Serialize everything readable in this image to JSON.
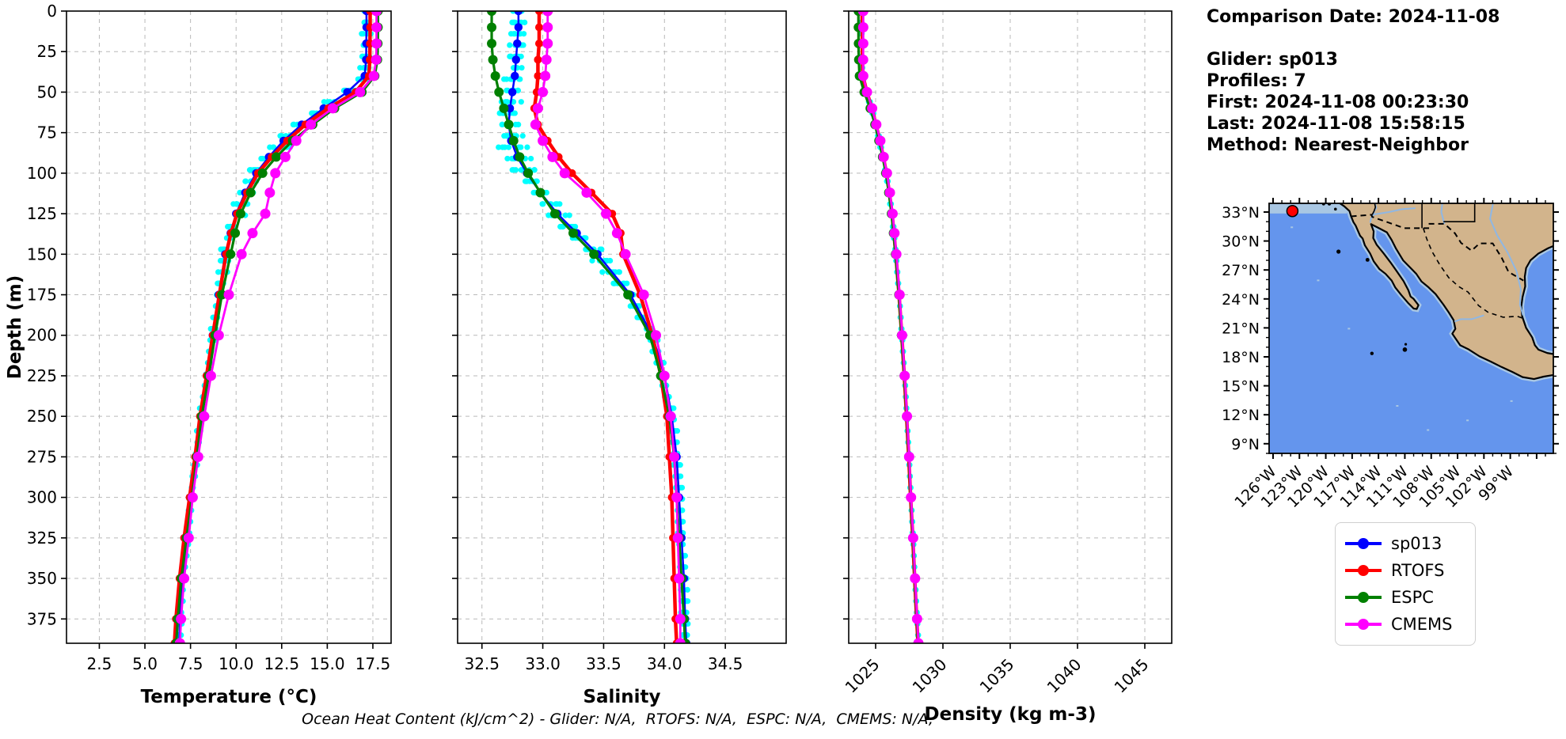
{
  "info_panel": {
    "comparison_date": "Comparison Date: 2024-11-08",
    "lines": [
      "Glider: sp013",
      "Profiles: 7",
      "First: 2024-11-08 00:23:30",
      "Last: 2024-11-08 15:58:15",
      "Method: Nearest-Neighbor"
    ]
  },
  "legend": {
    "entries": [
      {
        "label": "sp013",
        "color": "#0000ff"
      },
      {
        "label": "RTOFS",
        "color": "#ff0000"
      },
      {
        "label": "ESPC",
        "color": "#008000"
      },
      {
        "label": "CMEMS",
        "color": "#ff00ff"
      }
    ]
  },
  "footer": "Ocean Heat Content (kJ/cm^2) - Glider: N/A,  RTOFS: N/A,  ESPC: N/A,  CMEMS: N/A,",
  "chart_data": [
    {
      "type": "line",
      "title": "",
      "xlabel": "Temperature (°C)",
      "ylabel": "Depth (m)",
      "xlim": [
        0.7,
        18.5
      ],
      "ylim": [
        0,
        390
      ],
      "xticks": [
        2.5,
        5.0,
        7.5,
        10.0,
        12.5,
        15.0,
        17.5
      ],
      "xtick_labels": [
        "2.5",
        "5.0",
        "7.5",
        "10.0",
        "12.5",
        "15.0",
        "17.5"
      ],
      "ytick_step": 25,
      "grid": true,
      "rotate_xticklabels": false,
      "show_ytick_labels": true,
      "depths": [
        0,
        10,
        20,
        30,
        40,
        50,
        60,
        70,
        80,
        90,
        100,
        112,
        125,
        137,
        150,
        175,
        200,
        225,
        250,
        275,
        300,
        325,
        350,
        375,
        390
      ],
      "series": [
        {
          "name": "sp013",
          "color": "#0000ff",
          "values": [
            17.15,
            17.15,
            17.14,
            17.13,
            17.05,
            16.1,
            14.8,
            13.6,
            12.6,
            11.8,
            11.1,
            10.5,
            10.0,
            9.7,
            9.4,
            9.05,
            8.72,
            8.4,
            8.05,
            7.8,
            7.55,
            7.3,
            7.05,
            6.92,
            6.88
          ]
        },
        {
          "name": "RTOFS",
          "color": "#ff0000",
          "values": [
            17.35,
            17.35,
            17.34,
            17.33,
            17.28,
            16.55,
            15.05,
            13.8,
            12.8,
            11.95,
            11.2,
            10.6,
            10.05,
            9.72,
            9.45,
            9.08,
            8.72,
            8.38,
            8.02,
            7.75,
            7.45,
            7.15,
            6.9,
            6.7,
            6.62
          ]
        },
        {
          "name": "ESPC",
          "color": "#008000",
          "values": [
            17.78,
            17.78,
            17.77,
            17.75,
            17.6,
            16.9,
            15.4,
            14.2,
            13.1,
            12.2,
            11.45,
            10.8,
            10.25,
            9.95,
            9.7,
            9.22,
            8.85,
            8.5,
            8.12,
            7.85,
            7.58,
            7.28,
            7.0,
            6.8,
            6.72
          ]
        },
        {
          "name": "CMEMS",
          "color": "#ff00ff",
          "values": [
            17.7,
            17.7,
            17.7,
            17.68,
            17.55,
            16.8,
            15.3,
            14.1,
            13.3,
            12.7,
            12.15,
            11.85,
            11.6,
            10.9,
            10.3,
            9.6,
            9.05,
            8.62,
            8.25,
            7.92,
            7.62,
            7.4,
            7.15,
            6.98,
            6.92
          ]
        }
      ],
      "raw_scatter": {
        "name": "individual glider profiles",
        "color": "#00ffff",
        "profiles": 7
      }
    },
    {
      "type": "line",
      "title": "",
      "xlabel": "Salinity",
      "ylabel": "",
      "xlim": [
        32.3,
        35.0
      ],
      "ylim": [
        0,
        390
      ],
      "xticks": [
        32.5,
        33.0,
        33.5,
        34.0,
        34.5
      ],
      "xtick_labels": [
        "32.5",
        "33.0",
        "33.5",
        "34.0",
        "34.5"
      ],
      "ytick_step": 25,
      "grid": true,
      "rotate_xticklabels": false,
      "show_ytick_labels": false,
      "depths": [
        0,
        10,
        20,
        30,
        40,
        50,
        60,
        70,
        80,
        90,
        100,
        112,
        125,
        137,
        150,
        175,
        200,
        225,
        250,
        275,
        300,
        325,
        350,
        375,
        390
      ],
      "series": [
        {
          "name": "sp013",
          "color": "#0000ff",
          "values": [
            32.8,
            32.8,
            32.79,
            32.78,
            32.77,
            32.75,
            32.73,
            32.72,
            32.74,
            32.79,
            32.87,
            32.98,
            33.12,
            33.28,
            33.45,
            33.72,
            33.9,
            34.0,
            34.06,
            34.1,
            34.12,
            34.14,
            34.16,
            34.17,
            34.18
          ]
        },
        {
          "name": "RTOFS",
          "color": "#ff0000",
          "values": [
            32.97,
            32.97,
            32.97,
            32.96,
            32.96,
            32.95,
            32.93,
            32.96,
            33.04,
            33.13,
            33.24,
            33.4,
            33.57,
            33.64,
            33.66,
            33.8,
            33.9,
            33.97,
            34.02,
            34.04,
            34.06,
            34.07,
            34.08,
            34.09,
            34.1
          ]
        },
        {
          "name": "ESPC",
          "color": "#008000",
          "values": [
            32.58,
            32.58,
            32.58,
            32.59,
            32.61,
            32.64,
            32.68,
            32.72,
            32.76,
            32.81,
            32.88,
            32.98,
            33.1,
            33.25,
            33.42,
            33.7,
            33.88,
            33.97,
            34.04,
            34.08,
            34.1,
            34.12,
            34.14,
            34.16,
            34.17
          ]
        },
        {
          "name": "CMEMS",
          "color": "#ff00ff",
          "values": [
            33.04,
            33.04,
            33.04,
            33.03,
            33.02,
            33.0,
            32.96,
            32.94,
            33.0,
            33.08,
            33.18,
            33.36,
            33.52,
            33.61,
            33.68,
            33.83,
            33.93,
            34.0,
            34.05,
            34.08,
            34.1,
            34.11,
            34.12,
            34.13,
            34.13
          ]
        }
      ],
      "raw_scatter": {
        "name": "individual glider profiles",
        "color": "#00ffff",
        "profiles": 7
      }
    },
    {
      "type": "line",
      "title": "",
      "xlabel": "Density (kg m-3)",
      "ylabel": "",
      "xlim": [
        1023,
        1047
      ],
      "ylim": [
        0,
        390
      ],
      "xticks": [
        1025,
        1030,
        1035,
        1040,
        1045
      ],
      "xtick_labels": [
        "1025",
        "1030",
        "1035",
        "1040",
        "1045"
      ],
      "ytick_step": 25,
      "grid": true,
      "rotate_xticklabels": true,
      "show_ytick_labels": false,
      "depths": [
        0,
        10,
        20,
        30,
        40,
        50,
        60,
        70,
        80,
        90,
        100,
        112,
        125,
        137,
        150,
        175,
        200,
        225,
        250,
        275,
        300,
        325,
        350,
        375,
        390
      ],
      "series": [
        {
          "name": "sp013",
          "color": "#0000ff",
          "values": [
            1023.95,
            1023.95,
            1023.96,
            1023.97,
            1024.0,
            1024.3,
            1024.7,
            1025.0,
            1025.3,
            1025.55,
            1025.78,
            1026.0,
            1026.2,
            1026.35,
            1026.5,
            1026.75,
            1026.95,
            1027.15,
            1027.32,
            1027.48,
            1027.62,
            1027.78,
            1027.92,
            1028.08,
            1028.18
          ]
        },
        {
          "name": "RTOFS",
          "color": "#ff0000",
          "values": [
            1024.0,
            1024.0,
            1024.01,
            1024.02,
            1024.05,
            1024.35,
            1024.72,
            1025.02,
            1025.32,
            1025.57,
            1025.8,
            1026.02,
            1026.22,
            1026.36,
            1026.5,
            1026.74,
            1026.94,
            1027.13,
            1027.3,
            1027.46,
            1027.6,
            1027.76,
            1027.9,
            1028.05,
            1028.15
          ]
        },
        {
          "name": "ESPC",
          "color": "#008000",
          "values": [
            1023.72,
            1023.72,
            1023.73,
            1023.75,
            1023.8,
            1024.15,
            1024.6,
            1024.95,
            1025.25,
            1025.52,
            1025.76,
            1025.98,
            1026.18,
            1026.33,
            1026.48,
            1026.73,
            1026.93,
            1027.13,
            1027.31,
            1027.47,
            1027.61,
            1027.77,
            1027.91,
            1028.06,
            1028.16
          ]
        },
        {
          "name": "CMEMS",
          "color": "#ff00ff",
          "values": [
            1024.08,
            1024.08,
            1024.08,
            1024.07,
            1024.08,
            1024.36,
            1024.74,
            1025.05,
            1025.35,
            1025.6,
            1025.84,
            1026.06,
            1026.26,
            1026.4,
            1026.54,
            1026.78,
            1026.97,
            1027.16,
            1027.33,
            1027.49,
            1027.63,
            1027.79,
            1027.93,
            1028.08,
            1028.18
          ]
        }
      ],
      "raw_scatter": {
        "name": "individual glider profiles",
        "color": "#00ffff",
        "profiles": 7
      }
    }
  ],
  "map": {
    "extent": {
      "lon": [
        -126.45,
        -94.1
      ],
      "lat": [
        8.0,
        33.9
      ]
    },
    "lat_ticks": [
      {
        "value": 33,
        "label": "33°N"
      },
      {
        "value": 30,
        "label": "30°N"
      },
      {
        "value": 27,
        "label": "27°N"
      },
      {
        "value": 24,
        "label": "24°N"
      },
      {
        "value": 21,
        "label": "21°N"
      },
      {
        "value": 18,
        "label": "18°N"
      },
      {
        "value": 15,
        "label": "15°N"
      },
      {
        "value": 12,
        "label": "12°N"
      },
      {
        "value": 9,
        "label": "9°N"
      }
    ],
    "lon_ticks": [
      {
        "value": -126,
        "label": "126°W"
      },
      {
        "value": -123,
        "label": "123°W"
      },
      {
        "value": -120,
        "label": "120°W"
      },
      {
        "value": -117,
        "label": "117°W"
      },
      {
        "value": -114,
        "label": "114°W"
      },
      {
        "value": -111,
        "label": "111°W"
      },
      {
        "value": -108,
        "label": "108°W"
      },
      {
        "value": -105,
        "label": "105°W"
      },
      {
        "value": -102,
        "label": "102°W"
      },
      {
        "value": -99,
        "label": "99°W"
      }
    ],
    "marker": {
      "lon": -123.8,
      "lat": 33.1,
      "color": "#ff0000"
    },
    "colors": {
      "ocean": "#6495ed",
      "land": "#d2b48c",
      "shelf": "#a9c7e3",
      "river": "#8fb7e4",
      "coastline": "#000000"
    }
  }
}
